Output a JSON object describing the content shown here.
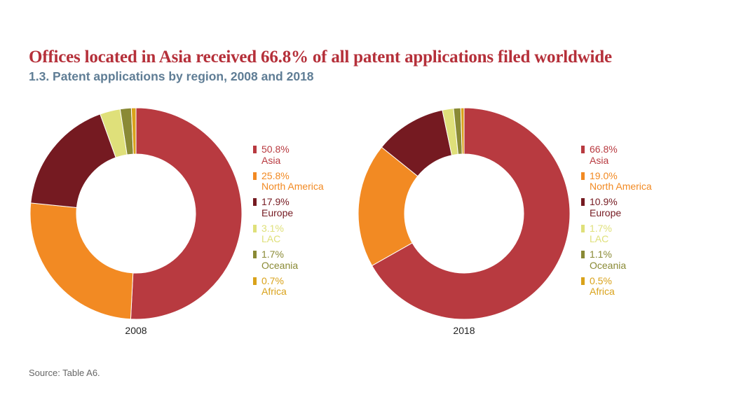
{
  "header": {
    "headline": "Offices located in Asia received 66.8% of all patent applications filed worldwide",
    "subtitle": "1.3. Patent applications by region, 2008 and 2018"
  },
  "chart_data": [
    {
      "type": "pie",
      "variant": "donut",
      "label": "2008",
      "slices": [
        {
          "name": "Asia",
          "value": 50.8,
          "display": "50.8%",
          "color": "#b83a40"
        },
        {
          "name": "North America",
          "value": 25.8,
          "display": "25.8%",
          "color": "#f28a23"
        },
        {
          "name": "Europe",
          "value": 17.9,
          "display": "17.9%",
          "color": "#751a21"
        },
        {
          "name": "LAC",
          "value": 3.1,
          "display": "3.1%",
          "color": "#dfe07a"
        },
        {
          "name": "Oceania",
          "value": 1.7,
          "display": "1.7%",
          "color": "#8a8a35"
        },
        {
          "name": "Africa",
          "value": 0.7,
          "display": "0.7%",
          "color": "#d9a21a"
        }
      ],
      "legend_position": "right"
    },
    {
      "type": "pie",
      "variant": "donut",
      "label": "2018",
      "slices": [
        {
          "name": "Asia",
          "value": 66.8,
          "display": "66.8%",
          "color": "#b83a40"
        },
        {
          "name": "North America",
          "value": 19.0,
          "display": "19.0%",
          "color": "#f28a23"
        },
        {
          "name": "Europe",
          "value": 10.9,
          "display": "10.9%",
          "color": "#751a21"
        },
        {
          "name": "LAC",
          "value": 1.7,
          "display": "1.7%",
          "color": "#dfe07a"
        },
        {
          "name": "Oceania",
          "value": 1.1,
          "display": "1.1%",
          "color": "#8a8a35"
        },
        {
          "name": "Africa",
          "value": 0.5,
          "display": "0.5%",
          "color": "#d9a21a"
        }
      ],
      "legend_position": "right"
    }
  ],
  "footer": {
    "source": "Source: Table A6."
  }
}
